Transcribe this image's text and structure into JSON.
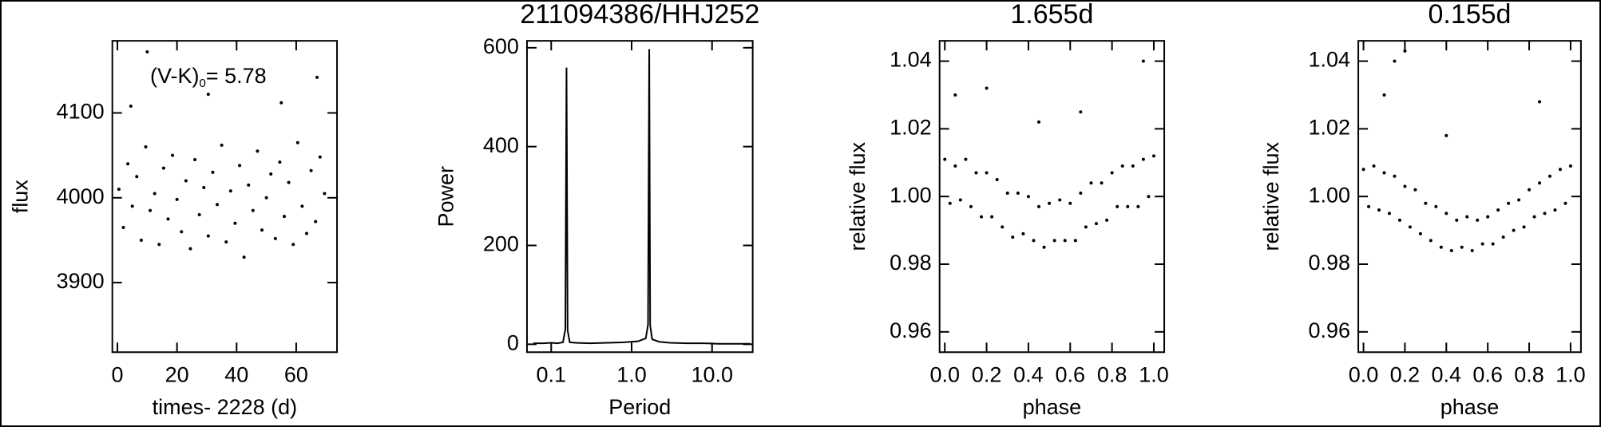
{
  "chart_data": [
    {
      "type": "scatter",
      "x_label": "times- 2228 (d)",
      "y_label": "flux",
      "annotation": [
        "(V-K)",
        "0",
        "= 5.78"
      ],
      "color": "#000000",
      "xlim": [
        -1.7,
        73.7
      ],
      "ylim": [
        3818,
        4185
      ],
      "xticks": [
        0,
        20,
        40,
        60
      ],
      "yticks": [
        3900,
        4000,
        4100
      ],
      "x": [
        0.5,
        2,
        3.5,
        5,
        6.5,
        8,
        9.5,
        11,
        12.5,
        14,
        15.5,
        17,
        18.5,
        20,
        21.5,
        23,
        24.5,
        26,
        27.5,
        29,
        30.5,
        32,
        33.5,
        35,
        36.5,
        38,
        39.5,
        41,
        42.5,
        44,
        45.5,
        47,
        48.5,
        50,
        51.5,
        53,
        54.5,
        56,
        57.5,
        59,
        60.5,
        62,
        63.5,
        65,
        66.5,
        68,
        69.5,
        4.5,
        10,
        30.5,
        55,
        67
      ],
      "values": [
        4010,
        3965,
        4040,
        3990,
        4025,
        3950,
        4060,
        3985,
        4005,
        3945,
        4035,
        3975,
        4050,
        3998,
        3960,
        4020,
        3940,
        4045,
        3980,
        4012,
        3955,
        4030,
        3992,
        4062,
        3948,
        4008,
        3970,
        4038,
        3930,
        4015,
        3985,
        4055,
        3962,
        4000,
        4028,
        3952,
        4042,
        3978,
        4018,
        3945,
        4065,
        3990,
        3958,
        4032,
        3972,
        4048,
        4005,
        4108,
        4172,
        4122,
        4112,
        4142
      ]
    },
    {
      "type": "line",
      "title": "211094386/HHJ252",
      "x_label": "Period",
      "y_label": "Power",
      "log_x": true,
      "color": "#000000",
      "xlim": [
        0.05,
        32
      ],
      "ylim": [
        -16,
        614
      ],
      "xticks": [
        {
          "value": 0.1,
          "label": "0.1"
        },
        {
          "value": 1,
          "label": "1.0"
        },
        {
          "value": 10,
          "label": "10.0"
        }
      ],
      "yticks": [
        0,
        200,
        400,
        600
      ],
      "x": [
        0.06,
        0.08,
        0.1,
        0.12,
        0.14,
        0.15,
        0.155,
        0.16,
        0.17,
        0.2,
        0.3,
        0.5,
        0.8,
        1.2,
        1.5,
        1.6,
        1.655,
        1.7,
        1.8,
        2.2,
        3,
        5,
        8,
        12,
        20,
        30
      ],
      "values": [
        2,
        2,
        3,
        2,
        4,
        30,
        560,
        28,
        4,
        3,
        2,
        3,
        4,
        6,
        12,
        40,
        597,
        38,
        10,
        5,
        3,
        2,
        2,
        1,
        1,
        1
      ]
    },
    {
      "type": "scatter",
      "title": "1.655d",
      "x_label": "phase",
      "y_label": "relative flux",
      "color": "#000000",
      "xlim": [
        -0.025,
        1.05
      ],
      "ylim": [
        0.954,
        1.046
      ],
      "xticks": [
        {
          "value": 0,
          "label": "0.0"
        },
        0.2,
        0.4,
        0.6,
        0.8,
        {
          "value": 1,
          "label": "1.0"
        }
      ],
      "yticks": [
        0.96,
        0.98,
        {
          "value": 1,
          "label": "1.00"
        },
        1.02,
        1.04
      ],
      "x": [
        0,
        0.025,
        0.05,
        0.075,
        0.1,
        0.125,
        0.15,
        0.175,
        0.2,
        0.225,
        0.25,
        0.275,
        0.3,
        0.325,
        0.35,
        0.375,
        0.4,
        0.425,
        0.45,
        0.475,
        0.5,
        0.525,
        0.55,
        0.575,
        0.6,
        0.625,
        0.65,
        0.675,
        0.7,
        0.725,
        0.75,
        0.775,
        0.8,
        0.825,
        0.85,
        0.875,
        0.9,
        0.925,
        0.95,
        0.975,
        1,
        0.2,
        0.45,
        0.65,
        0.95,
        0.05
      ],
      "values": [
        1.011,
        0.998,
        1.009,
        0.999,
        1.011,
        0.997,
        1.007,
        0.994,
        1.007,
        0.994,
        1.005,
        0.991,
        1.001,
        0.988,
        1.001,
        0.989,
        1.0,
        0.987,
        0.997,
        0.985,
        0.998,
        0.987,
        0.999,
        0.987,
        0.998,
        0.987,
        1.001,
        0.991,
        1.004,
        0.992,
        1.004,
        0.993,
        1.007,
        0.997,
        1.009,
        0.997,
        1.009,
        0.997,
        1.011,
        1.0,
        1.012,
        1.032,
        1.022,
        1.025,
        1.04,
        1.03
      ]
    },
    {
      "type": "scatter",
      "title": "0.155d",
      "x_label": "phase",
      "y_label": "relative flux",
      "color": "#000000",
      "xlim": [
        -0.025,
        1.05
      ],
      "ylim": [
        0.954,
        1.046
      ],
      "xticks": [
        {
          "value": 0,
          "label": "0.0"
        },
        0.2,
        0.4,
        0.6,
        0.8,
        {
          "value": 1,
          "label": "1.0"
        }
      ],
      "yticks": [
        0.96,
        0.98,
        {
          "value": 1,
          "label": "1.00"
        },
        1.02,
        1.04
      ],
      "x": [
        0,
        0.025,
        0.05,
        0.075,
        0.1,
        0.125,
        0.15,
        0.175,
        0.2,
        0.225,
        0.25,
        0.275,
        0.3,
        0.325,
        0.35,
        0.375,
        0.4,
        0.425,
        0.45,
        0.475,
        0.5,
        0.525,
        0.55,
        0.575,
        0.6,
        0.625,
        0.65,
        0.675,
        0.7,
        0.725,
        0.75,
        0.775,
        0.8,
        0.825,
        0.85,
        0.875,
        0.9,
        0.925,
        0.95,
        0.975,
        1,
        0.1,
        0.2,
        0.4,
        0.85,
        0.15
      ],
      "values": [
        1.008,
        0.997,
        1.009,
        0.996,
        1.007,
        0.995,
        1.006,
        0.993,
        1.003,
        0.991,
        1.002,
        0.989,
        0.998,
        0.987,
        0.997,
        0.985,
        0.995,
        0.984,
        0.993,
        0.985,
        0.994,
        0.984,
        0.993,
        0.986,
        0.994,
        0.986,
        0.996,
        0.988,
        0.998,
        0.99,
        0.999,
        0.991,
        1.002,
        0.994,
        1.004,
        0.995,
        1.006,
        0.996,
        1.008,
        0.998,
        1.009,
        1.03,
        1.043,
        1.018,
        1.028,
        1.04
      ]
    }
  ]
}
